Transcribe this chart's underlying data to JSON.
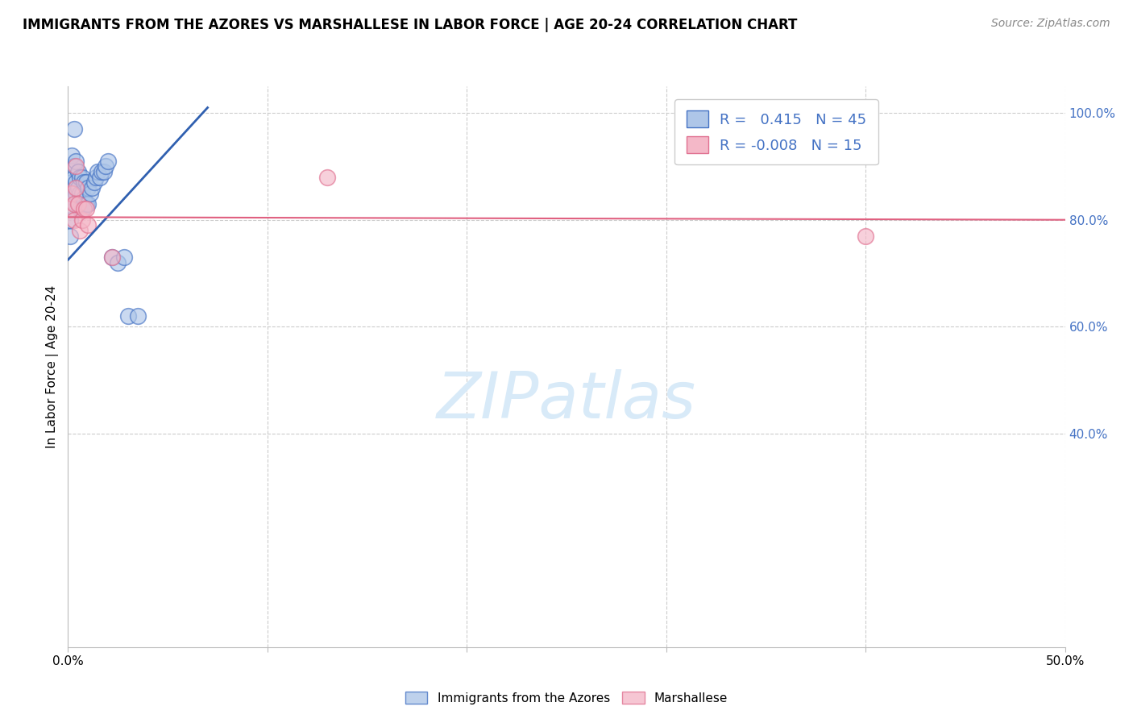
{
  "title": "IMMIGRANTS FROM THE AZORES VS MARSHALLESE IN LABOR FORCE | AGE 20-24 CORRELATION CHART",
  "source": "Source: ZipAtlas.com",
  "ylabel": "In Labor Force | Age 20-24",
  "xmin": 0.0,
  "xmax": 0.5,
  "ymin": 0.0,
  "ymax": 1.05,
  "yticks": [
    0.4,
    0.6,
    0.8,
    1.0
  ],
  "ytick_labels": [
    "40.0%",
    "60.0%",
    "80.0%",
    "100.0%"
  ],
  "xticks": [
    0.0,
    0.1,
    0.2,
    0.3,
    0.4,
    0.5
  ],
  "xtick_labels": [
    "0.0%",
    "",
    "",
    "",
    "",
    "50.0%"
  ],
  "blue_R": 0.415,
  "blue_N": 45,
  "pink_R": -0.008,
  "pink_N": 15,
  "blue_fill": "#aec6e8",
  "pink_fill": "#f4b8c8",
  "blue_edge": "#4472c4",
  "pink_edge": "#e07090",
  "blue_line_color": "#3060b0",
  "pink_line_color": "#e06080",
  "watermark_color": "#d8eaf8",
  "blue_scatter_x": [
    0.001,
    0.001,
    0.002,
    0.002,
    0.002,
    0.003,
    0.003,
    0.003,
    0.003,
    0.003,
    0.004,
    0.004,
    0.004,
    0.004,
    0.005,
    0.005,
    0.005,
    0.006,
    0.006,
    0.006,
    0.007,
    0.007,
    0.007,
    0.008,
    0.008,
    0.009,
    0.009,
    0.01,
    0.01,
    0.011,
    0.012,
    0.013,
    0.014,
    0.015,
    0.016,
    0.017,
    0.018,
    0.019,
    0.02,
    0.022,
    0.025,
    0.028,
    0.03,
    0.035,
    0.003
  ],
  "blue_scatter_y": [
    0.77,
    0.8,
    0.84,
    0.87,
    0.92,
    0.82,
    0.84,
    0.86,
    0.88,
    0.9,
    0.83,
    0.85,
    0.87,
    0.91,
    0.83,
    0.86,
    0.89,
    0.82,
    0.85,
    0.88,
    0.82,
    0.85,
    0.88,
    0.84,
    0.87,
    0.83,
    0.87,
    0.83,
    0.86,
    0.85,
    0.86,
    0.87,
    0.88,
    0.89,
    0.88,
    0.89,
    0.89,
    0.9,
    0.91,
    0.73,
    0.72,
    0.73,
    0.62,
    0.62,
    0.97
  ],
  "pink_scatter_x": [
    0.001,
    0.002,
    0.003,
    0.003,
    0.004,
    0.004,
    0.005,
    0.006,
    0.007,
    0.008,
    0.009,
    0.01,
    0.13,
    0.4,
    0.022
  ],
  "pink_scatter_y": [
    0.82,
    0.85,
    0.8,
    0.83,
    0.86,
    0.9,
    0.83,
    0.78,
    0.8,
    0.82,
    0.82,
    0.79,
    0.88,
    0.77,
    0.73
  ],
  "blue_line_x0": 0.0,
  "blue_line_x1": 0.07,
  "blue_line_y0": 0.725,
  "blue_line_y1": 1.01,
  "pink_line_x0": 0.0,
  "pink_line_x1": 0.5,
  "pink_line_y0": 0.805,
  "pink_line_y1": 0.8
}
